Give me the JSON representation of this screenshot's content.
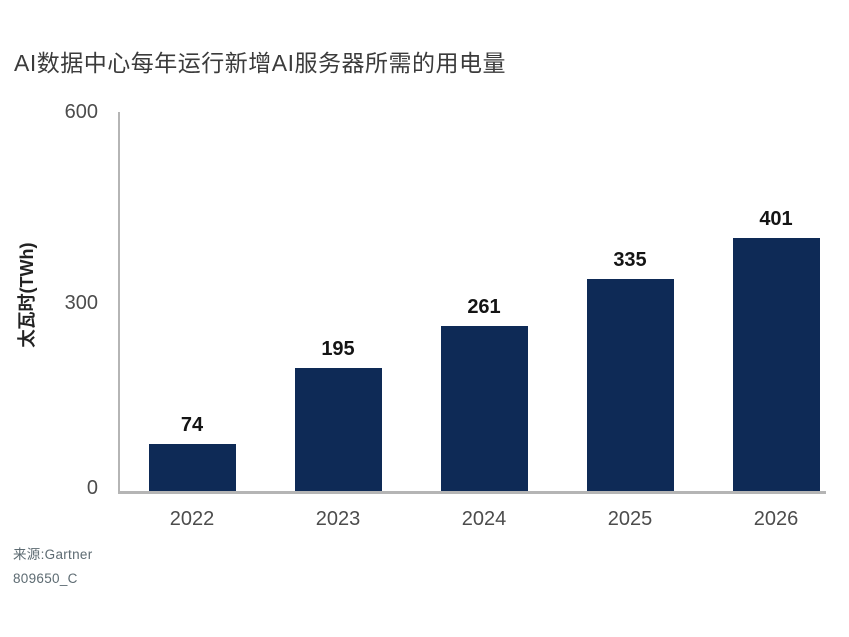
{
  "title": "AI数据中心每年运行新增AI服务器所需的用电量",
  "y_axis": {
    "label": "太瓦时(TWh)",
    "ticks": [
      "600",
      "300",
      "0"
    ]
  },
  "source": {
    "line1": "来源:Gartner",
    "line2": "809650_C"
  },
  "colors": {
    "bar": "#0e2a56",
    "axis_line": "#b5b5b5",
    "title_text": "#3b3b3b",
    "tick_text": "#4c4c4c",
    "value_text": "#141414",
    "source_text": "#5d6b72",
    "background": "#ffffff"
  },
  "chart_data": {
    "type": "bar",
    "title": "AI数据中心每年运行新增AI服务器所需的用电量",
    "categories": [
      "2022",
      "2023",
      "2024",
      "2025",
      "2026"
    ],
    "values": [
      74,
      195,
      261,
      335,
      401
    ],
    "xlabel": "",
    "ylabel": "太瓦时(TWh)",
    "ylim": [
      0,
      600
    ],
    "yticks": [
      0,
      300,
      600
    ],
    "grid": false,
    "legend_position": "none",
    "bar_color": "#0e2a56",
    "value_labels_shown": true,
    "source_text": "来源:Gartner",
    "figure_code": "809650_C"
  }
}
